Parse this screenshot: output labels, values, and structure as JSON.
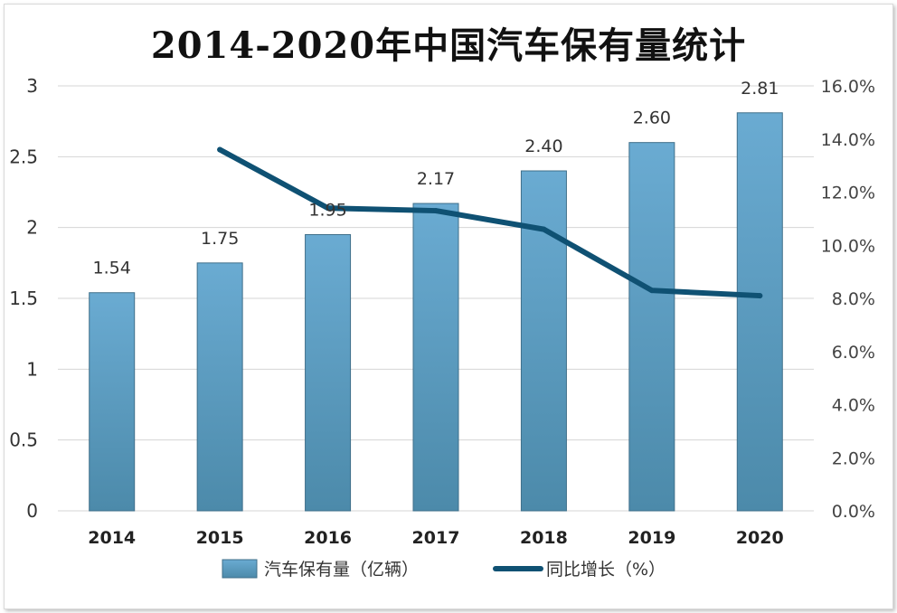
{
  "chart_data": {
    "type": "bar",
    "title": "2014-2020年中国汽车保有量统计",
    "categories": [
      "2014",
      "2015",
      "2016",
      "2017",
      "2018",
      "2019",
      "2020"
    ],
    "series": [
      {
        "name": "汽车保有量（亿辆）",
        "type": "bar",
        "axis": "left",
        "values": [
          1.54,
          1.75,
          1.95,
          2.17,
          2.4,
          2.6,
          2.81
        ],
        "labels": [
          "1.54",
          "1.75",
          "1.95",
          "2.17",
          "2.40",
          "2.60",
          "2.81"
        ],
        "color": "#5b9fc6"
      },
      {
        "name": "同比增长（%）",
        "type": "line",
        "axis": "right",
        "values": [
          null,
          13.6,
          11.4,
          11.3,
          10.6,
          8.3,
          8.1
        ],
        "color": "#0f5173"
      }
    ],
    "y_left": {
      "ticks": [
        "0",
        "0.5",
        "1",
        "1.5",
        "2",
        "2.5",
        "3"
      ],
      "ylim": [
        0,
        3
      ]
    },
    "y_right": {
      "ticks": [
        "0.0%",
        "2.0%",
        "4.0%",
        "6.0%",
        "8.0%",
        "10.0%",
        "12.0%",
        "14.0%",
        "16.0%"
      ],
      "ylim": [
        0,
        16
      ]
    },
    "grid": true,
    "legend": "bottom"
  }
}
